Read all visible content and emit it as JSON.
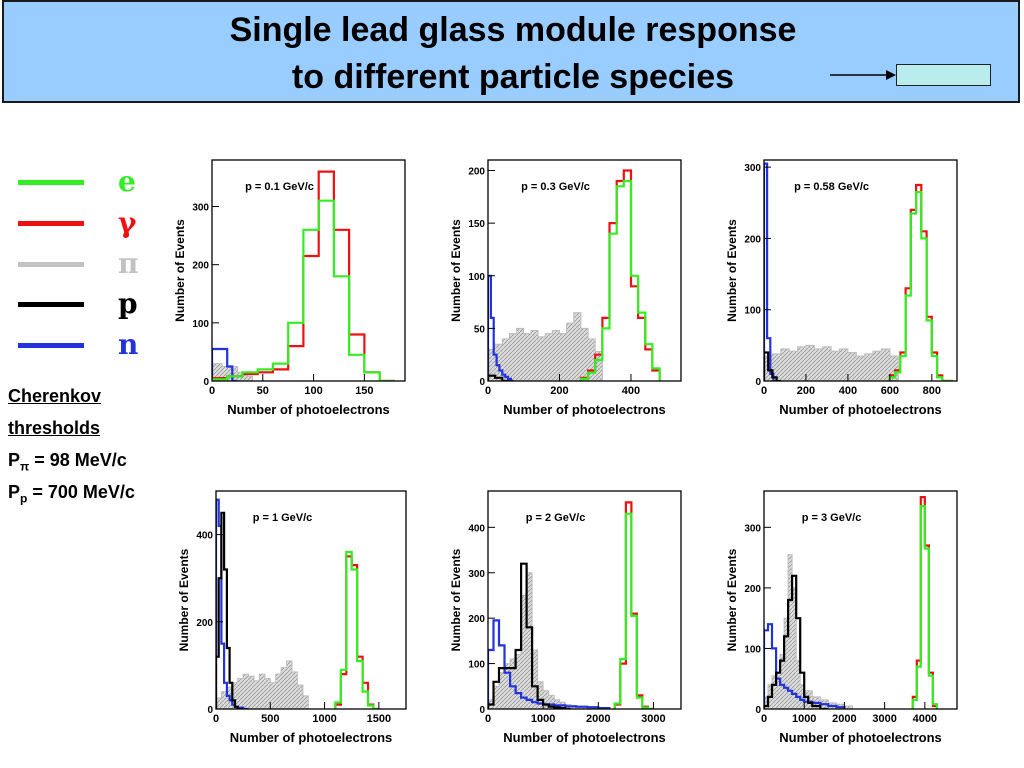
{
  "title": {
    "line1": "Single lead glass module response",
    "line2": "to different particle species"
  },
  "legend": [
    {
      "label": "e",
      "color": "#33ee22"
    },
    {
      "label": "γ",
      "color": "#ee1111"
    },
    {
      "label": "π",
      "color": "#c2c2c2"
    },
    {
      "label": "p",
      "color": "#000000"
    },
    {
      "label": "n",
      "color": "#2233dd"
    }
  ],
  "notes": {
    "line1": "Cherenkov",
    "line2": "thresholds",
    "p_pi_base": "P",
    "p_pi_sub": "π",
    "p_pi_value": " = 98 MeV/c",
    "p_p_base": "P",
    "p_p_sub": "p",
    "p_p_value": " = 700 MeV/c"
  },
  "chart_data": [
    {
      "type": "histogram",
      "title": "p = 0.1 GeV/c",
      "xlabel": "Number of photoelectrons",
      "ylabel": "Number of Events",
      "xlim": [
        0,
        190
      ],
      "ylim": [
        0,
        380
      ],
      "xticks": [
        0,
        50,
        100,
        150
      ],
      "yticks": [
        0,
        100,
        200,
        300
      ],
      "series": [
        {
          "particle": "pi",
          "style": "fill",
          "color": "#c2c2c2",
          "bin_edges": [
            0,
            5,
            10,
            15,
            20,
            25,
            30,
            35,
            40
          ],
          "values": [
            30,
            30,
            25,
            25,
            25,
            15,
            10,
            8
          ]
        },
        {
          "particle": "n",
          "style": "line",
          "color": "#2233dd",
          "bin_edges": [
            0,
            5,
            10,
            15,
            20,
            25
          ],
          "values": [
            55,
            55,
            55,
            25,
            0
          ]
        },
        {
          "particle": "gamma",
          "style": "line",
          "color": "#ee1111",
          "bin_edges": [
            0,
            15,
            30,
            45,
            60,
            75,
            90,
            105,
            120,
            135,
            150,
            165,
            180
          ],
          "values": [
            5,
            8,
            12,
            15,
            20,
            60,
            215,
            360,
            260,
            80,
            15,
            0
          ]
        },
        {
          "particle": "e",
          "style": "line",
          "color": "#33ee22",
          "bin_edges": [
            0,
            15,
            30,
            45,
            60,
            75,
            90,
            105,
            120,
            135,
            150,
            165,
            180
          ],
          "values": [
            3,
            8,
            15,
            20,
            30,
            100,
            260,
            310,
            180,
            45,
            15,
            0
          ]
        }
      ]
    },
    {
      "type": "histogram",
      "title": "p = 0.3 GeV/c",
      "xlabel": "Number of photoelectrons",
      "ylabel": "Number of Events",
      "xlim": [
        0,
        540
      ],
      "ylim": [
        0,
        210
      ],
      "xticks": [
        0,
        200,
        400
      ],
      "yticks": [
        0,
        50,
        100,
        150,
        200
      ],
      "series": [
        {
          "particle": "pi",
          "style": "fill",
          "color": "#c2c2c2",
          "bin_edges": [
            0,
            20,
            40,
            60,
            80,
            100,
            120,
            140,
            160,
            180,
            200,
            220,
            240,
            260,
            280,
            300,
            320
          ],
          "values": [
            30,
            35,
            40,
            45,
            50,
            45,
            48,
            42,
            45,
            48,
            45,
            55,
            65,
            50,
            40,
            28
          ]
        },
        {
          "particle": "n",
          "style": "line",
          "color": "#2233dd",
          "bin_edges": [
            0,
            8,
            16,
            24,
            32,
            40,
            48,
            56,
            64,
            72
          ],
          "values": [
            100,
            60,
            25,
            15,
            10,
            6,
            4,
            2,
            0
          ]
        },
        {
          "particle": "p",
          "style": "line",
          "color": "#000000",
          "bin_edges": [
            0,
            20,
            40,
            60
          ],
          "values": [
            5,
            3,
            0
          ]
        },
        {
          "particle": "gamma",
          "style": "line",
          "color": "#ee1111",
          "bin_edges": [
            260,
            280,
            300,
            320,
            340,
            360,
            380,
            400,
            420,
            440,
            460,
            480
          ],
          "values": [
            3,
            10,
            25,
            60,
            150,
            190,
            200,
            90,
            60,
            30,
            10
          ]
        },
        {
          "particle": "e",
          "style": "line",
          "color": "#33ee22",
          "bin_edges": [
            260,
            280,
            300,
            320,
            340,
            360,
            380,
            400,
            420,
            440,
            460,
            480
          ],
          "values": [
            2,
            8,
            20,
            50,
            140,
            185,
            190,
            100,
            65,
            35,
            12
          ]
        }
      ]
    },
    {
      "type": "histogram",
      "title": "p = 0.58 GeV/c",
      "xlabel": "Number of photoelectrons",
      "ylabel": "Number of Events",
      "xlim": [
        0,
        920
      ],
      "ylim": [
        0,
        310
      ],
      "xticks": [
        0,
        200,
        400,
        600,
        800
      ],
      "yticks": [
        0,
        100,
        200,
        300
      ],
      "series": [
        {
          "particle": "pi",
          "style": "fill",
          "color": "#c2c2c2",
          "bin_edges": [
            0,
            40,
            80,
            120,
            160,
            200,
            240,
            280,
            320,
            360,
            400,
            440,
            480,
            520,
            560,
            600,
            640
          ],
          "values": [
            35,
            38,
            45,
            42,
            48,
            50,
            45,
            48,
            42,
            45,
            40,
            35,
            38,
            42,
            45,
            35
          ]
        },
        {
          "particle": "n",
          "style": "line",
          "color": "#2233dd",
          "bin_edges": [
            0,
            15,
            30,
            45,
            60
          ],
          "values": [
            305,
            60,
            10,
            0
          ]
        },
        {
          "particle": "p",
          "style": "line",
          "color": "#000000",
          "bin_edges": [
            0,
            20,
            40,
            60,
            80
          ],
          "values": [
            40,
            15,
            5,
            0
          ]
        },
        {
          "particle": "gamma",
          "style": "line",
          "color": "#ee1111",
          "bin_edges": [
            600,
            625,
            650,
            675,
            700,
            725,
            750,
            775,
            800,
            825,
            850,
            875,
            900
          ],
          "values": [
            8,
            15,
            40,
            130,
            240,
            275,
            210,
            90,
            40,
            8,
            0,
            0
          ]
        },
        {
          "particle": "e",
          "style": "line",
          "color": "#33ee22",
          "bin_edges": [
            600,
            625,
            650,
            675,
            700,
            725,
            750,
            775,
            800,
            825,
            850,
            875,
            900
          ],
          "values": [
            5,
            12,
            35,
            120,
            235,
            265,
            200,
            85,
            35,
            5,
            0,
            0
          ]
        }
      ]
    },
    {
      "type": "histogram",
      "title": "p = 1 GeV/c",
      "xlabel": "Number of photoelectrons",
      "ylabel": "Number of Events",
      "xlim": [
        0,
        1750
      ],
      "ylim": [
        0,
        500
      ],
      "xticks": [
        0,
        500,
        1000,
        1500
      ],
      "yticks": [
        0,
        200,
        400
      ],
      "series": [
        {
          "particle": "pi",
          "style": "fill",
          "color": "#c2c2c2",
          "bin_edges": [
            0,
            50,
            100,
            150,
            200,
            250,
            300,
            350,
            400,
            450,
            500,
            550,
            600,
            650,
            700,
            750,
            800,
            850
          ],
          "values": [
            25,
            40,
            50,
            60,
            70,
            80,
            75,
            65,
            80,
            70,
            60,
            80,
            95,
            110,
            85,
            55,
            30
          ]
        },
        {
          "particle": "n",
          "style": "line",
          "color": "#2233dd",
          "bin_edges": [
            0,
            25,
            50,
            75,
            100,
            125,
            150,
            175,
            200,
            250,
            300
          ],
          "values": [
            480,
            420,
            150,
            60,
            30,
            20,
            10,
            5,
            3,
            0
          ]
        },
        {
          "particle": "p",
          "style": "line",
          "color": "#000000",
          "bin_edges": [
            0,
            25,
            50,
            75,
            100,
            125,
            150,
            175,
            200,
            250
          ],
          "values": [
            120,
            300,
            450,
            320,
            140,
            60,
            20,
            5,
            0
          ]
        },
        {
          "particle": "gamma",
          "style": "line",
          "color": "#ee1111",
          "bin_edges": [
            1100,
            1150,
            1200,
            1250,
            1300,
            1350,
            1400,
            1450,
            1500
          ],
          "values": [
            10,
            80,
            350,
            330,
            120,
            60,
            10,
            0
          ]
        },
        {
          "particle": "e",
          "style": "line",
          "color": "#33ee22",
          "bin_edges": [
            1100,
            1150,
            1200,
            1250,
            1300,
            1350,
            1400,
            1450,
            1500
          ],
          "values": [
            15,
            90,
            360,
            320,
            110,
            40,
            8,
            0
          ]
        }
      ]
    },
    {
      "type": "histogram",
      "title": "p = 2 GeV/c",
      "xlabel": "Number of photoelectrons",
      "ylabel": "Number of Events",
      "xlim": [
        0,
        3500
      ],
      "ylim": [
        0,
        480
      ],
      "xticks": [
        0,
        1000,
        2000,
        3000
      ],
      "yticks": [
        0,
        100,
        200,
        300,
        400
      ],
      "series": [
        {
          "particle": "pi",
          "style": "fill",
          "color": "#c2c2c2",
          "bin_edges": [
            0,
            100,
            200,
            300,
            400,
            500,
            600,
            700,
            800,
            900,
            1000,
            1100,
            1200,
            1300,
            1400,
            1500,
            1600,
            1700,
            1800,
            1900,
            2000
          ],
          "values": [
            20,
            50,
            80,
            100,
            110,
            120,
            250,
            300,
            130,
            60,
            40,
            30,
            20,
            15,
            10,
            8,
            5,
            3,
            2,
            1
          ]
        },
        {
          "particle": "n",
          "style": "line",
          "color": "#2233dd",
          "bin_edges": [
            0,
            100,
            200,
            300,
            400,
            500,
            600,
            700,
            800,
            900,
            1000,
            1200,
            1400,
            1600,
            1800,
            2000,
            2200
          ],
          "values": [
            130,
            195,
            140,
            80,
            50,
            35,
            25,
            20,
            15,
            12,
            10,
            8,
            6,
            5,
            4,
            2
          ]
        },
        {
          "particle": "p",
          "style": "line",
          "color": "#000000",
          "bin_edges": [
            0,
            100,
            200,
            300,
            400,
            500,
            600,
            700,
            800,
            900,
            1000,
            1100,
            1200,
            1300,
            1400,
            1500
          ],
          "values": [
            10,
            60,
            90,
            90,
            90,
            130,
            320,
            180,
            50,
            20,
            10,
            5,
            3,
            2,
            0
          ]
        },
        {
          "particle": "gamma",
          "style": "line",
          "color": "#ee1111",
          "bin_edges": [
            2300,
            2400,
            2500,
            2600,
            2700,
            2800,
            2900,
            3000
          ],
          "values": [
            10,
            100,
            455,
            210,
            30,
            5,
            0
          ]
        },
        {
          "particle": "e",
          "style": "line",
          "color": "#33ee22",
          "bin_edges": [
            2300,
            2400,
            2500,
            2600,
            2700,
            2800,
            2900,
            3000
          ],
          "values": [
            12,
            110,
            430,
            205,
            25,
            3,
            0
          ]
        }
      ]
    },
    {
      "type": "histogram",
      "title": "p = 3 GeV/c",
      "xlabel": "Number of photoelectrons",
      "ylabel": "Number of Events",
      "xlim": [
        0,
        4800
      ],
      "ylim": [
        0,
        360
      ],
      "xticks": [
        0,
        1000,
        2000,
        3000,
        4000
      ],
      "yticks": [
        0,
        100,
        200,
        300
      ],
      "series": [
        {
          "particle": "pi",
          "style": "fill",
          "color": "#c2c2c2",
          "bin_edges": [
            0,
            100,
            200,
            300,
            400,
            500,
            600,
            700,
            800,
            900,
            1000,
            1200,
            1400,
            1600,
            1800,
            2000,
            2200
          ],
          "values": [
            20,
            40,
            55,
            60,
            90,
            150,
            255,
            200,
            80,
            40,
            30,
            20,
            15,
            10,
            8,
            5
          ]
        },
        {
          "particle": "n",
          "style": "line",
          "color": "#2233dd",
          "bin_edges": [
            0,
            100,
            200,
            300,
            400,
            500,
            600,
            700,
            800,
            900,
            1000,
            1200,
            1400,
            1600,
            1800,
            2000
          ],
          "values": [
            130,
            140,
            100,
            50,
            40,
            35,
            30,
            25,
            20,
            15,
            12,
            10,
            8,
            5,
            3
          ]
        },
        {
          "particle": "p",
          "style": "line",
          "color": "#000000",
          "bin_edges": [
            0,
            100,
            200,
            300,
            400,
            500,
            600,
            700,
            800,
            900,
            1000,
            1100,
            1200,
            1400,
            1600
          ],
          "values": [
            5,
            20,
            40,
            60,
            80,
            120,
            180,
            220,
            150,
            60,
            20,
            10,
            5,
            0
          ]
        },
        {
          "particle": "gamma",
          "style": "line",
          "color": "#ee1111",
          "bin_edges": [
            3700,
            3800,
            3900,
            4000,
            4100,
            4200,
            4300
          ],
          "values": [
            20,
            80,
            350,
            270,
            60,
            5
          ]
        },
        {
          "particle": "e",
          "style": "line",
          "color": "#33ee22",
          "bin_edges": [
            3700,
            3800,
            3900,
            4000,
            4100,
            4200,
            4300
          ],
          "values": [
            15,
            70,
            335,
            265,
            55,
            8
          ]
        }
      ]
    }
  ]
}
